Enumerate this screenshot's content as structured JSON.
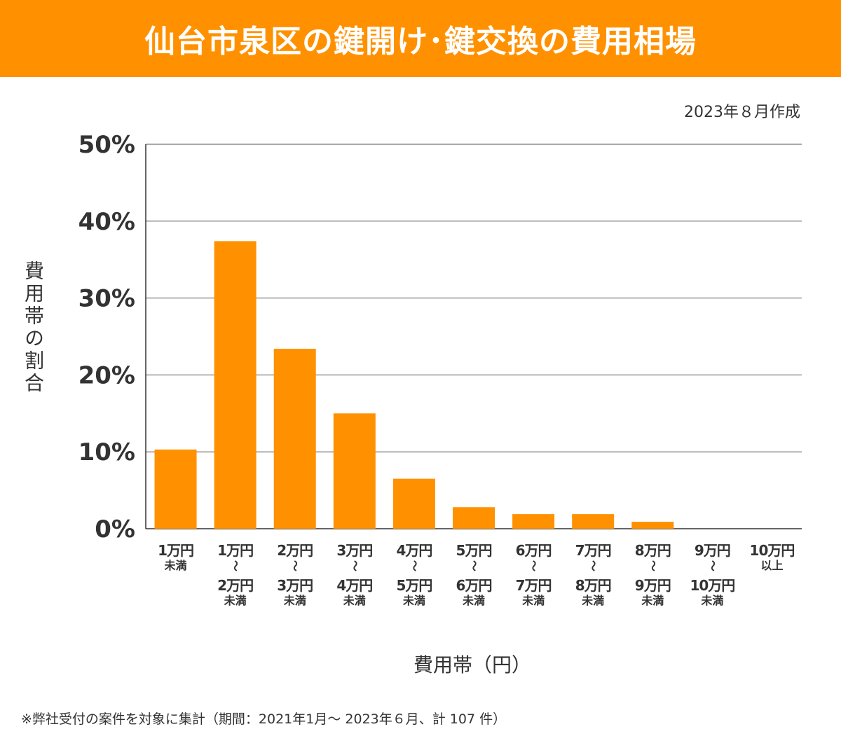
{
  "header": {
    "title": "仙台市泉区の鍵開け･鍵交換の費用相場"
  },
  "date_note": "2023年８月作成",
  "footnote": "※弊社受付の案件を対象に集計（期間：2021年1月～ 2023年６月、計 107 件）",
  "chart_data": {
    "type": "bar",
    "title": "仙台市泉区の鍵開け･鍵交換の費用相場",
    "xlabel": "費用帯（円）",
    "ylabel": "費用帯の割合",
    "ylim": [
      0,
      50
    ],
    "yticks": [
      "0%",
      "10%",
      "20%",
      "30%",
      "40%",
      "50%"
    ],
    "grid": true,
    "bar_color": "#ff9100",
    "categories": [
      {
        "lines": [
          "1万円",
          "未満"
        ]
      },
      {
        "lines": [
          "1万円",
          "〜",
          "2万円",
          "未満"
        ]
      },
      {
        "lines": [
          "2万円",
          "〜",
          "3万円",
          "未満"
        ]
      },
      {
        "lines": [
          "3万円",
          "〜",
          "4万円",
          "未満"
        ]
      },
      {
        "lines": [
          "4万円",
          "〜",
          "5万円",
          "未満"
        ]
      },
      {
        "lines": [
          "5万円",
          "〜",
          "6万円",
          "未満"
        ]
      },
      {
        "lines": [
          "6万円",
          "〜",
          "7万円",
          "未満"
        ]
      },
      {
        "lines": [
          "7万円",
          "〜",
          "8万円",
          "未満"
        ]
      },
      {
        "lines": [
          "8万円",
          "〜",
          "9万円",
          "未満"
        ]
      },
      {
        "lines": [
          "9万円",
          "〜",
          "10万円",
          "未満"
        ]
      },
      {
        "lines": [
          "10万円",
          "以上"
        ]
      }
    ],
    "values": [
      10.3,
      37.4,
      23.4,
      15.0,
      6.5,
      2.8,
      1.9,
      1.9,
      0.9,
      0,
      0
    ]
  }
}
